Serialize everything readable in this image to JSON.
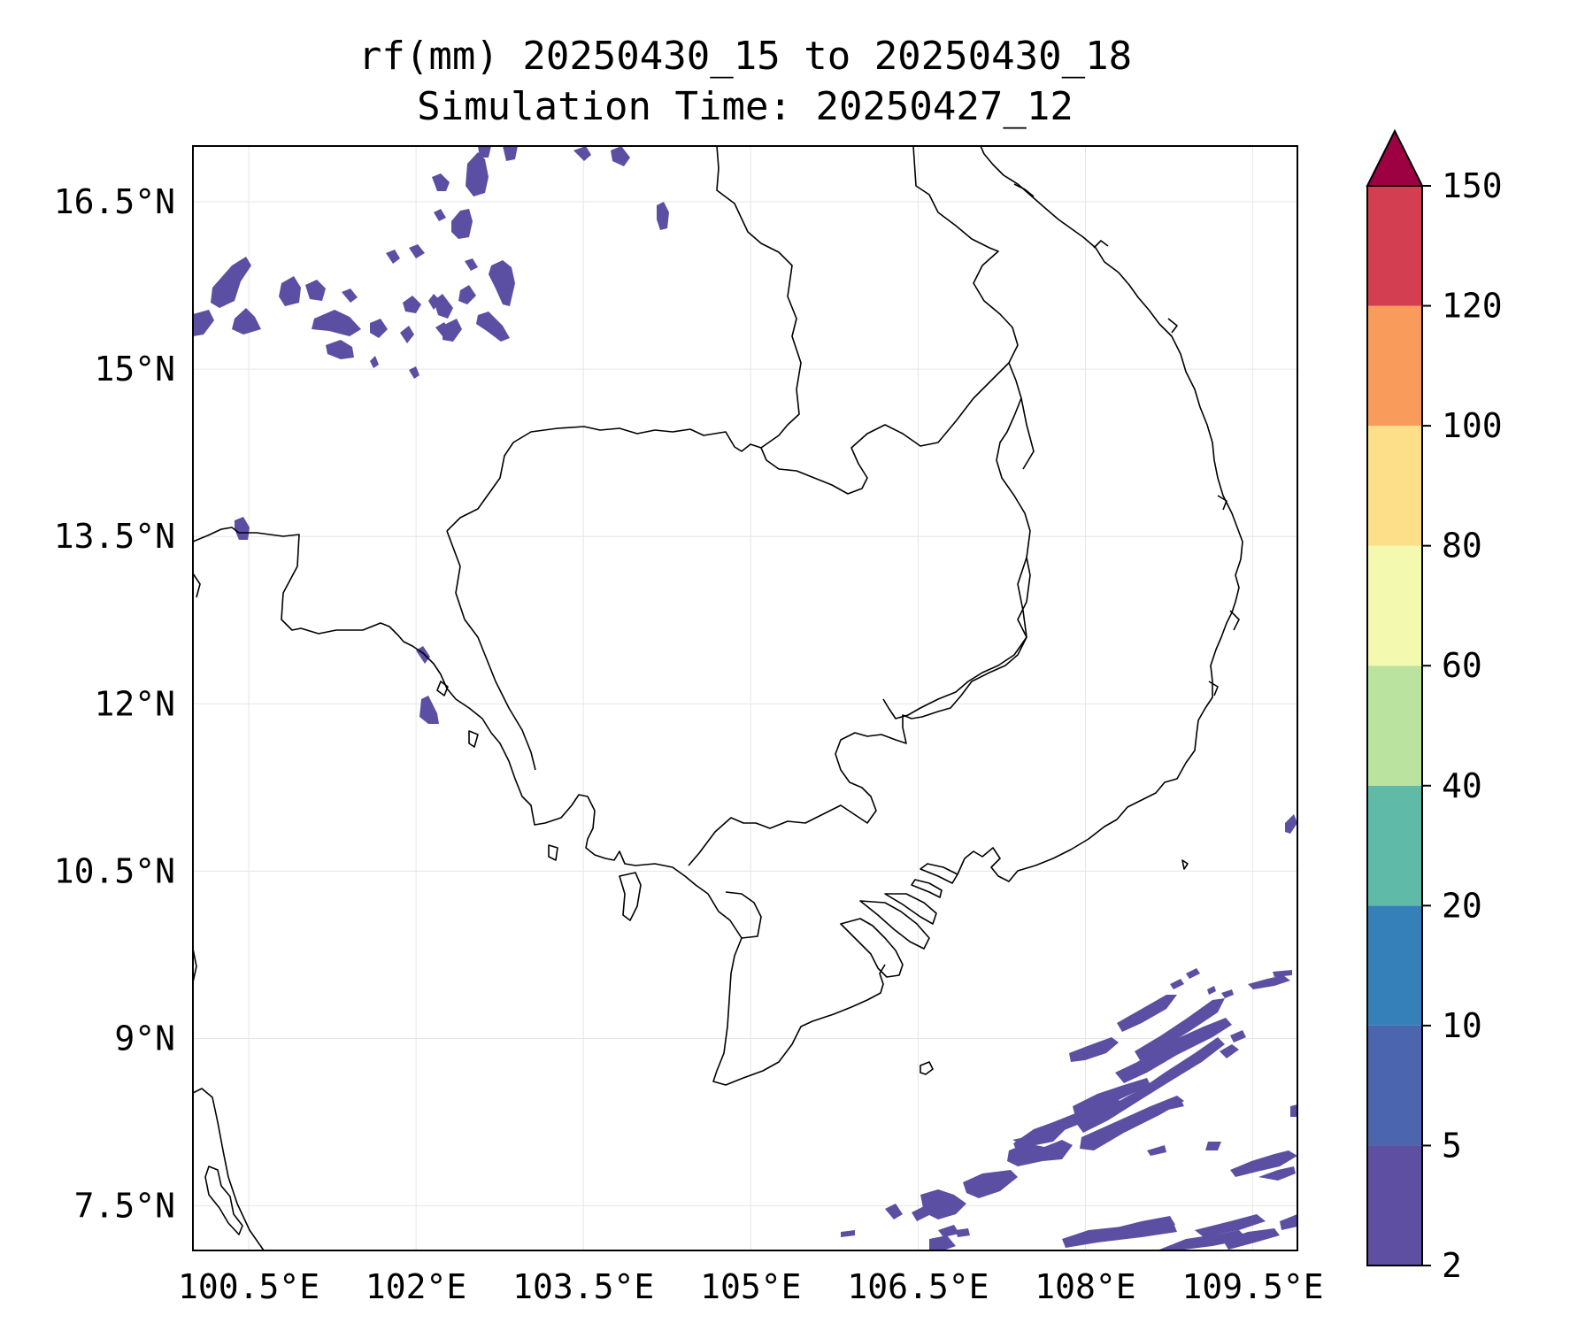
{
  "title": {
    "line1": "rf(mm) 20250430_15 to 20250430_18",
    "line2": "Simulation Time: 20250427_12"
  },
  "map": {
    "lon_range": [
      100.0,
      109.9
    ],
    "lat_range": [
      7.1,
      17.0
    ],
    "x_ticks": [
      {
        "value": 100.5,
        "label": "100.5°E"
      },
      {
        "value": 102.0,
        "label": "102°E"
      },
      {
        "value": 103.5,
        "label": "103.5°E"
      },
      {
        "value": 105.0,
        "label": "105°E"
      },
      {
        "value": 106.5,
        "label": "106.5°E"
      },
      {
        "value": 108.0,
        "label": "108°E"
      },
      {
        "value": 109.5,
        "label": "109.5°E"
      }
    ],
    "y_ticks": [
      {
        "value": 16.5,
        "label": "16.5°N"
      },
      {
        "value": 15.0,
        "label": "15°N"
      },
      {
        "value": 13.5,
        "label": "13.5°N"
      },
      {
        "value": 12.0,
        "label": "12°N"
      },
      {
        "value": 10.5,
        "label": "10.5°N"
      },
      {
        "value": 9.0,
        "label": "9°N"
      },
      {
        "value": 7.5,
        "label": "7.5°N"
      }
    ],
    "grid": true,
    "coastline_color": "#000000",
    "rain_color": "#5a4fa2"
  },
  "colorbar": {
    "levels": [
      {
        "label": "2",
        "color": "#5e4fa2"
      },
      {
        "label": "5",
        "color": "#4b65ae"
      },
      {
        "label": "10",
        "color": "#3680b9"
      },
      {
        "label": "20",
        "color": "#5fbba8"
      },
      {
        "label": "40",
        "color": "#bbe3a0"
      },
      {
        "label": "60",
        "color": "#f3f9ae"
      },
      {
        "label": "80",
        "color": "#fddf8a"
      },
      {
        "label": "100",
        "color": "#f99c5b"
      },
      {
        "label": "120",
        "color": "#d33e50"
      },
      {
        "label": "150",
        "color": ""
      }
    ],
    "extend_color": "#9e0142",
    "extend": "max"
  }
}
